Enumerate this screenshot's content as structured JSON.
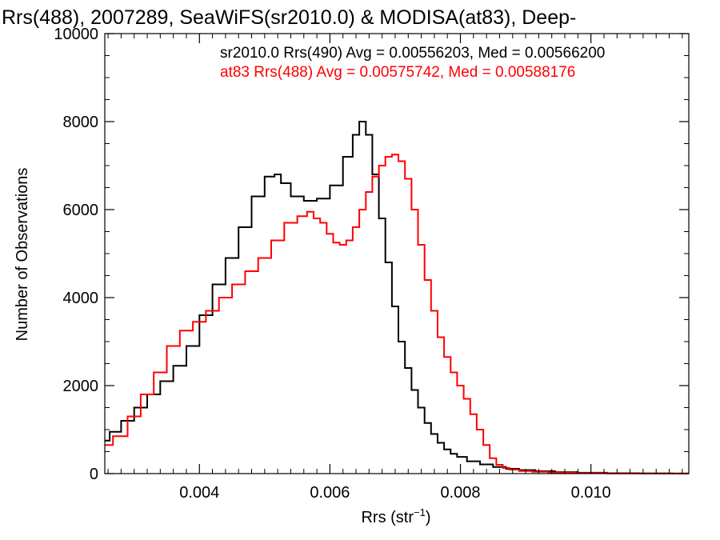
{
  "chart_data": {
    "type": "line",
    "title": "Rrs(488), 2007289, SeaWiFS(sr2010.0) & MODISA(at83), Deep-",
    "xlabel": "Rrs (str",
    "xlabel_sup": "−1",
    "xlabel_close": ")",
    "ylabel": "Number of Observations",
    "xlim": [
      0.00255,
      0.0115
    ],
    "ylim": [
      0,
      10000
    ],
    "x_ticks": [
      0.004,
      0.006,
      0.008,
      0.01
    ],
    "x_tick_labels": [
      "0.004",
      "0.006",
      "0.008",
      "0.010"
    ],
    "y_ticks": [
      0,
      2000,
      4000,
      6000,
      8000,
      10000
    ],
    "y_tick_labels": [
      "0",
      "2000",
      "4000",
      "6000",
      "8000",
      "10000"
    ],
    "annotations": [
      {
        "text": "sr2010.0 Rrs(490) Avg = 0.00556203, Med = 0.00566200",
        "color": "#000000"
      },
      {
        "text": "at83 Rrs(488) Avg = 0.00575742, Med = 0.00588176",
        "color": "#ff0000"
      }
    ],
    "series": [
      {
        "color": "#000000",
        "x": [
          0.00255,
          0.0027,
          0.0029,
          0.0031,
          0.0033,
          0.0035,
          0.0037,
          0.0039,
          0.0041,
          0.0043,
          0.0045,
          0.0047,
          0.0049,
          0.0051,
          0.0052,
          0.0053,
          0.0055,
          0.0057,
          0.0059,
          0.0061,
          0.0063,
          0.0064,
          0.0065,
          0.0066,
          0.0067,
          0.0068,
          0.0069,
          0.007,
          0.0071,
          0.0072,
          0.0073,
          0.0074,
          0.0075,
          0.0076,
          0.0077,
          0.0078,
          0.0079,
          0.008,
          0.0082,
          0.0084,
          0.0086,
          0.0088,
          0.009,
          0.0093,
          0.0096,
          0.01,
          0.0105,
          0.011,
          0.0115
        ],
        "y": [
          750,
          950,
          1200,
          1500,
          1800,
          2100,
          2450,
          2900,
          3600,
          4300,
          4900,
          5600,
          6300,
          6750,
          6800,
          6600,
          6300,
          6200,
          6250,
          6550,
          7200,
          7700,
          8000,
          7700,
          6800,
          5800,
          4800,
          3800,
          3000,
          2400,
          1900,
          1500,
          1150,
          900,
          700,
          550,
          450,
          380,
          280,
          210,
          150,
          110,
          80,
          55,
          35,
          20,
          10,
          5,
          2
        ]
      },
      {
        "color": "#ff0000",
        "x": [
          0.00255,
          0.0028,
          0.003,
          0.0032,
          0.0034,
          0.0036,
          0.0038,
          0.004,
          0.0042,
          0.0044,
          0.0046,
          0.0048,
          0.005,
          0.0052,
          0.0054,
          0.0056,
          0.0057,
          0.0058,
          0.0059,
          0.006,
          0.0061,
          0.0062,
          0.0063,
          0.0064,
          0.0065,
          0.0066,
          0.0067,
          0.0068,
          0.0069,
          0.007,
          0.0071,
          0.0072,
          0.0073,
          0.0074,
          0.0075,
          0.0076,
          0.0077,
          0.0078,
          0.0079,
          0.008,
          0.0081,
          0.0082,
          0.0083,
          0.0084,
          0.0085,
          0.0086,
          0.0087,
          0.0088,
          0.009,
          0.0092,
          0.0095,
          0.01,
          0.0105,
          0.011,
          0.0115
        ],
        "y": [
          650,
          850,
          1300,
          1800,
          2300,
          2900,
          3250,
          3450,
          3700,
          4000,
          4300,
          4600,
          4900,
          5300,
          5700,
          5850,
          5950,
          5800,
          5700,
          5450,
          5250,
          5200,
          5300,
          5600,
          6000,
          6400,
          6750,
          7000,
          7200,
          7250,
          7100,
          6700,
          6000,
          5200,
          4400,
          3700,
          3100,
          2650,
          2300,
          2000,
          1700,
          1350,
          1000,
          650,
          350,
          200,
          130,
          90,
          60,
          40,
          25,
          12,
          6,
          3,
          1
        ]
      }
    ]
  }
}
